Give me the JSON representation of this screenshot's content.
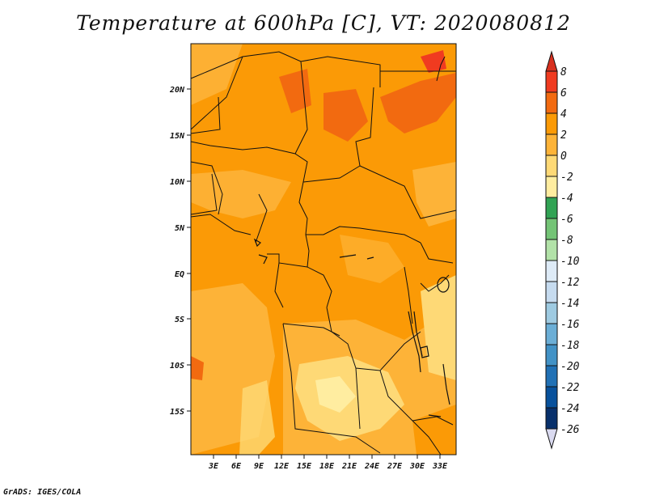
{
  "title": "Temperature at 600hPa [C], VT: 2020080812",
  "credit": "GrADS: IGES/COLA",
  "map": {
    "lon_labels": [
      "3E",
      "6E",
      "9E",
      "12E",
      "15E",
      "18E",
      "21E",
      "24E",
      "27E",
      "30E",
      "33E"
    ],
    "lat_labels": [
      "20N",
      "15N",
      "10N",
      "5N",
      "EQ",
      "5S",
      "10S",
      "15S"
    ]
  },
  "colorbar": {
    "labels": [
      "8",
      "6",
      "4",
      "2",
      "0",
      "-2",
      "-4",
      "-6",
      "-8",
      "-10",
      "-12",
      "-14",
      "-16",
      "-18",
      "-20",
      "-22",
      "-24",
      "-26"
    ],
    "colors": [
      "#d7301f",
      "#f03b20",
      "#f26a10",
      "#fb9a06",
      "#fdb338",
      "#fed976",
      "#ffeda0",
      "#31a354",
      "#74c476",
      "#b2e2a8",
      "#deebf7",
      "#c6dbef",
      "#9ecae1",
      "#6baed6",
      "#4292c6",
      "#2171b5",
      "#08519c",
      "#08306b",
      "#dadaf0"
    ]
  }
}
